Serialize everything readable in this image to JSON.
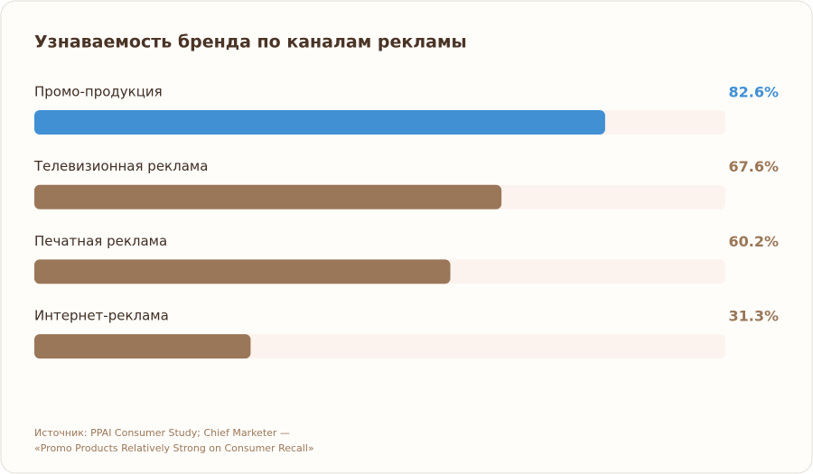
{
  "chart_data": {
    "type": "bar",
    "orientation": "horizontal",
    "title": "Узнаваемость бренда по каналам рекламы",
    "categories": [
      "Промо-продукция",
      "Телевизионная реклама",
      "Печатная реклама",
      "Интернет-реклама"
    ],
    "values": [
      82.6,
      67.6,
      60.2,
      31.3
    ],
    "value_labels": [
      "82.6%",
      "67.6%",
      "60.2%",
      "31.3%"
    ],
    "colors": [
      "#4190d4",
      "#9a7758",
      "#9a7758",
      "#9a7758"
    ],
    "xlim": [
      0,
      100
    ],
    "source": [
      "Источник: PPAI Consumer Study; Chief Marketer —",
      "«Promo Products Relatively Strong on Consumer Recall»"
    ]
  }
}
